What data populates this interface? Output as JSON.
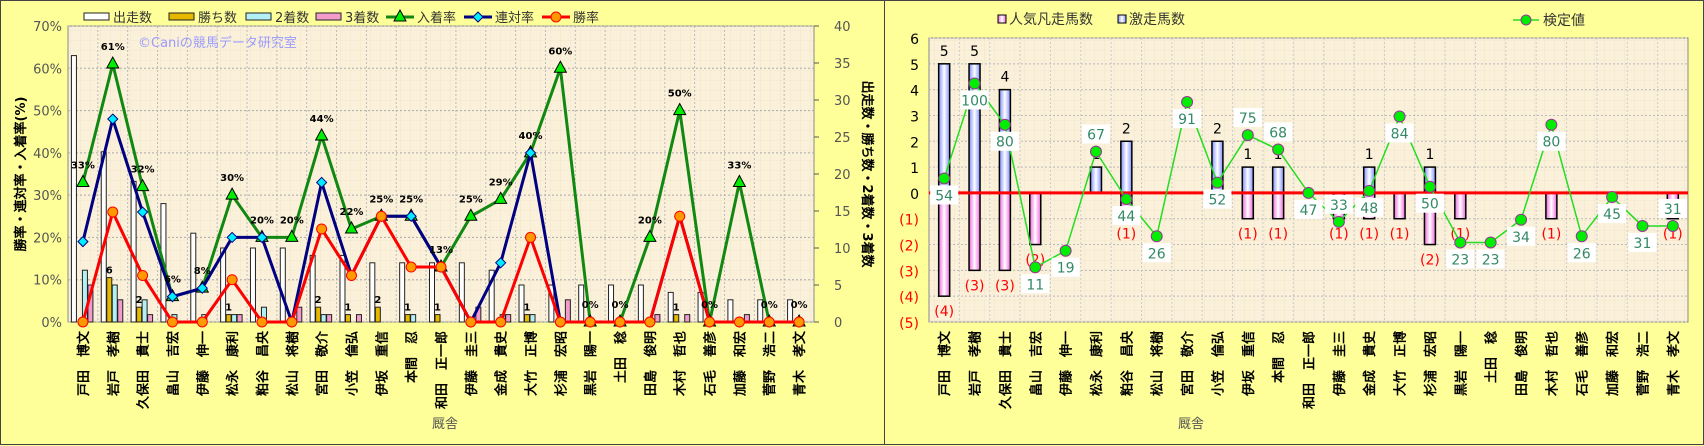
{
  "chart_data": [
    {
      "type": "bar+line",
      "watermark": "©Caniの競馬データ研究室",
      "xlabel": "厩舎",
      "ylabel_left": "勝率・連対率・入着率(%)",
      "ylabel_right": "出走数・勝ち数・2着数・3着数",
      "ylim_left": [
        0,
        70
      ],
      "ylim_right": [
        0,
        40
      ],
      "yticks_left": [
        "0%",
        "10%",
        "20%",
        "30%",
        "40%",
        "50%",
        "60%",
        "70%"
      ],
      "yticks_right": [
        "0",
        "5",
        "10",
        "15",
        "20",
        "25",
        "30",
        "35",
        "40"
      ],
      "grid": true,
      "legend_position": "top",
      "categories": [
        "戸田　博文",
        "岩戸　孝樹",
        "久保田　貴士",
        "畠山　吉宏",
        "伊藤　伸一",
        "松永　康利",
        "粕谷　昌央",
        "松山　将樹",
        "宮田　敬介",
        "小笠　倫弘",
        "伊坂　重信",
        "本間　忍",
        "和田　正一郎",
        "伊藤　圭三",
        "金成　貴史",
        "大竹　正博",
        "杉浦　宏昭",
        "黒岩　陽一",
        "土田　稔",
        "田島　俊明",
        "木村　哲也",
        "石毛　善彦",
        "加藤　和宏",
        "菅野　浩二",
        "青木　孝文"
      ],
      "bar_series": [
        {
          "name": "出走数",
          "axis": "right",
          "color": "#ffffff",
          "values": [
            36,
            23,
            19,
            16,
            12,
            10,
            10,
            10,
            9,
            9,
            8,
            8,
            8,
            8,
            7,
            5,
            5,
            5,
            5,
            5,
            4,
            4,
            3,
            3,
            3
          ]
        },
        {
          "name": "勝ち数",
          "axis": "right",
          "color": "#e6b800",
          "values": [
            0,
            6,
            2,
            0,
            0,
            1,
            0,
            0,
            2,
            1,
            2,
            1,
            1,
            0,
            0,
            1,
            0,
            0,
            0,
            0,
            1,
            0,
            0,
            0,
            0
          ]
        },
        {
          "name": "2着数",
          "axis": "right",
          "color": "#b3f0f5",
          "values": [
            7,
            5,
            3,
            1,
            1,
            1,
            2,
            0,
            1,
            0,
            0,
            1,
            0,
            0,
            1,
            1,
            0,
            0,
            0,
            0,
            0,
            0,
            0,
            0,
            0
          ]
        },
        {
          "name": "3着数",
          "axis": "right",
          "color": "#f29ccc",
          "values": [
            5,
            3,
            1,
            0,
            0,
            1,
            0,
            2,
            1,
            1,
            0,
            0,
            0,
            2,
            1,
            0,
            3,
            0,
            0,
            1,
            1,
            0,
            1,
            0,
            0
          ]
        }
      ],
      "line_series": [
        {
          "name": "入着率",
          "axis": "left",
          "color": "#118811",
          "marker": "triangle",
          "values": [
            33,
            61,
            32,
            6,
            8,
            30,
            20,
            20,
            44,
            22,
            25,
            25,
            13,
            25,
            29,
            40,
            60,
            0,
            0,
            20,
            50,
            0,
            33,
            0,
            0
          ]
        },
        {
          "name": "連対率",
          "axis": "left",
          "color": "#000080",
          "marker": "diamond",
          "values": [
            19,
            48,
            26,
            6,
            8,
            20,
            20,
            0,
            33,
            11,
            25,
            25,
            13,
            0,
            14,
            40,
            0,
            0,
            0,
            0,
            25,
            0,
            0,
            0,
            0
          ]
        },
        {
          "name": "勝率",
          "axis": "left",
          "color": "#ff0000",
          "marker": "circle",
          "values": [
            0,
            26,
            11,
            0,
            0,
            10,
            0,
            0,
            22,
            11,
            25,
            13,
            13,
            0,
            0,
            20,
            0,
            0,
            0,
            0,
            25,
            0,
            0,
            0,
            0
          ]
        }
      ]
    },
    {
      "type": "bar+line",
      "xlabel": "厩舎",
      "ylim": [
        -5,
        6
      ],
      "yticks": [
        "(5)",
        "(4)",
        "(3)",
        "(2)",
        "(1)",
        "0",
        "1",
        "2",
        "3",
        "4",
        "5",
        "6"
      ],
      "grid": true,
      "legend_position": "top",
      "categories": [
        "戸田　博文",
        "岩戸　孝樹",
        "久保田　貴士",
        "畠山　吉宏",
        "伊藤　伸一",
        "松永　康利",
        "粕谷　昌央",
        "松山　将樹",
        "宮田　敬介",
        "小笠　倫弘",
        "伊坂　重信",
        "本間　忍",
        "和田　正一郎",
        "伊藤　圭三",
        "金成　貴史",
        "大竹　正博",
        "杉浦　宏昭",
        "黒岩　陽一",
        "土田　稔",
        "田島　俊明",
        "木村　哲也",
        "石毛　善彦",
        "加藤　和宏",
        "菅野　浩二",
        "青木　孝文"
      ],
      "bar_series": [
        {
          "name": "人気凡走馬数",
          "color": "#ff99ee",
          "values": [
            -4,
            -3,
            -3,
            -2,
            0,
            0,
            -1,
            0,
            0,
            0,
            -1,
            -1,
            0,
            -1,
            -1,
            -1,
            -2,
            -1,
            0,
            0,
            -1,
            0,
            0,
            0,
            -1
          ]
        },
        {
          "name": "激走馬数",
          "color": "#99aaff",
          "values": [
            5,
            5,
            4,
            0,
            0,
            1,
            2,
            0,
            0,
            2,
            1,
            1,
            0,
            0,
            1,
            0,
            1,
            0,
            0,
            0,
            0,
            0,
            0,
            0,
            0
          ]
        }
      ],
      "line_series": [
        {
          "name": "検定値",
          "color": "#22dd22",
          "marker": "circle",
          "values": [
            54,
            100,
            80,
            11,
            19,
            67,
            44,
            26,
            91,
            52,
            75,
            68,
            47,
            33,
            48,
            84,
            50,
            23,
            23,
            34,
            80,
            26,
            45,
            31,
            31
          ]
        }
      ],
      "zero_line_color": "#ff0000"
    }
  ]
}
